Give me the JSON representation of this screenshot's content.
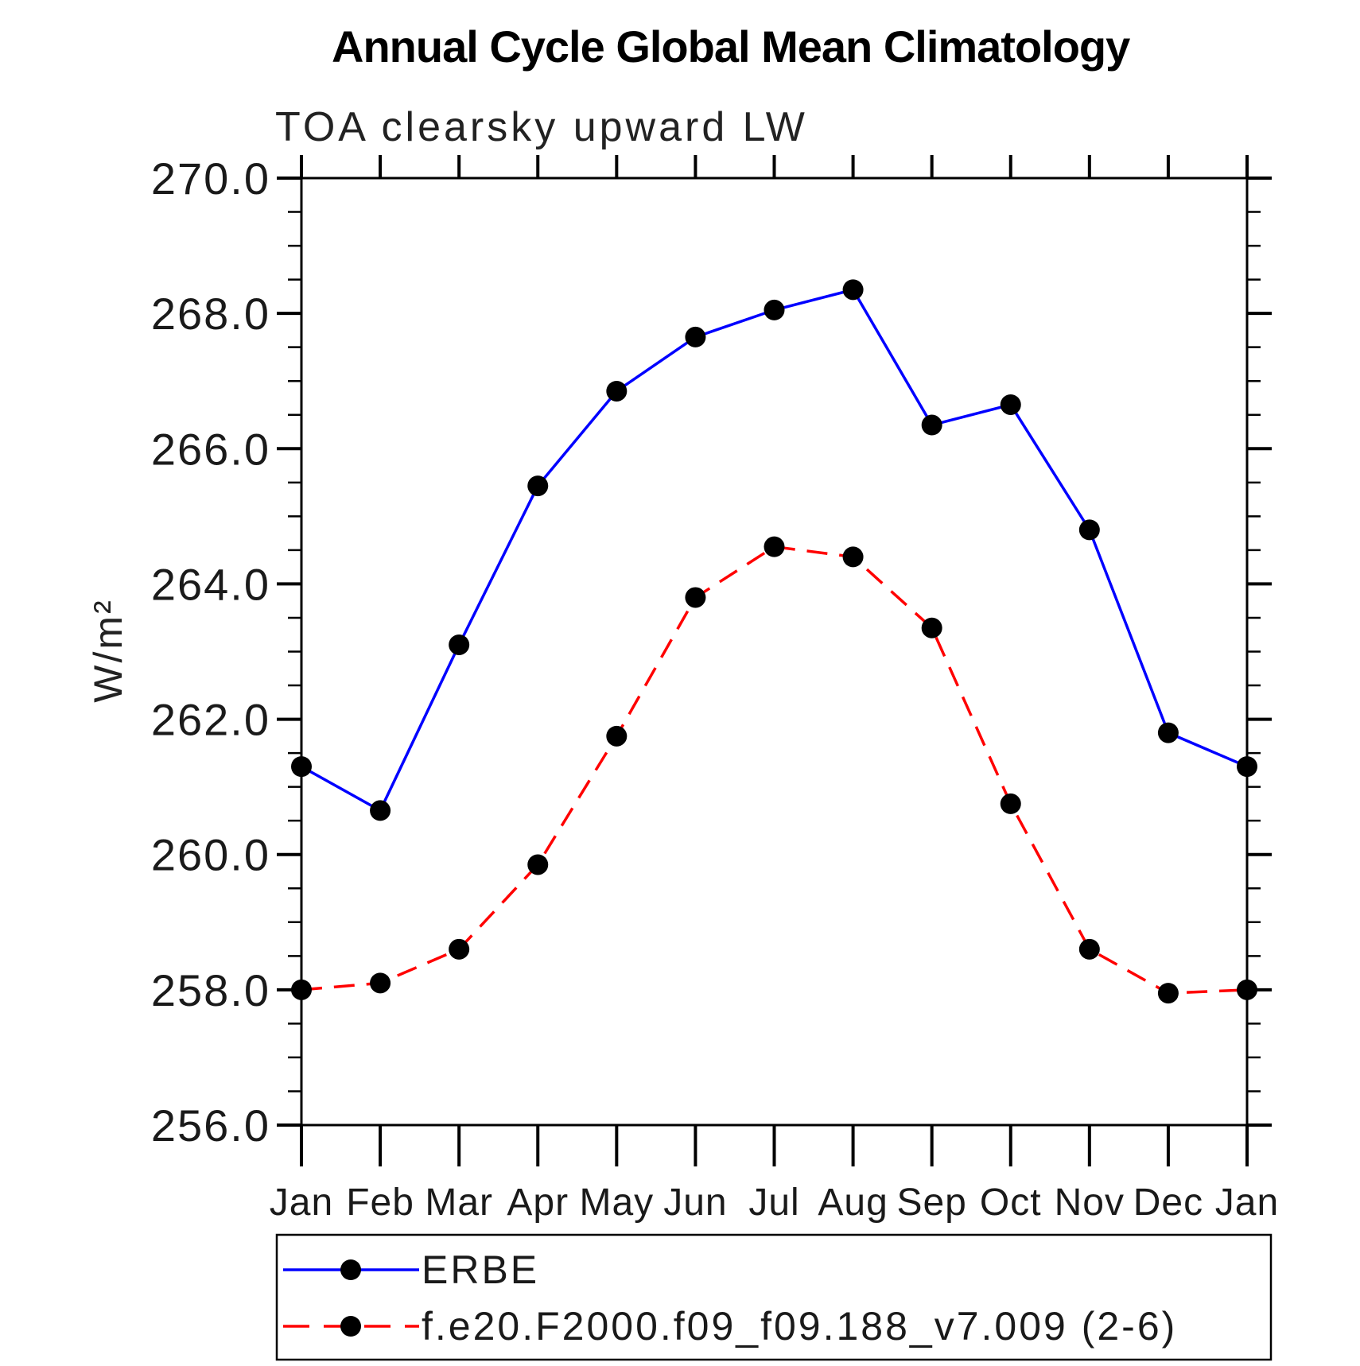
{
  "title": "Annual Cycle Global Mean Climatology",
  "subtitle": "TOA clearsky upward LW",
  "y_axis_label": "W/m²",
  "chart_data": {
    "type": "line",
    "title": "Annual Cycle Global Mean Climatology",
    "subtitle": "TOA clearsky upward LW",
    "ylabel": "W/m²",
    "categories": [
      "Jan",
      "Feb",
      "Mar",
      "Apr",
      "May",
      "Jun",
      "Jul",
      "Aug",
      "Sep",
      "Oct",
      "Nov",
      "Dec",
      "Jan"
    ],
    "series": [
      {
        "name": "ERBE",
        "color": "#0000ff",
        "line_style": "solid",
        "marker": "filled-circle",
        "marker_color": "#000000",
        "values": [
          261.3,
          260.65,
          263.1,
          265.45,
          266.85,
          267.65,
          268.05,
          268.35,
          266.35,
          266.65,
          264.8,
          261.8,
          261.3
        ]
      },
      {
        "name": "f.e20.F2000.f09_f09.188_v7.009 (2-6)",
        "color": "#ff0000",
        "line_style": "dashed",
        "marker": "filled-circle",
        "marker_color": "#000000",
        "values": [
          258.0,
          258.1,
          258.6,
          259.85,
          261.75,
          263.8,
          264.55,
          264.4,
          263.35,
          260.75,
          258.6,
          257.95,
          258.0
        ]
      }
    ],
    "ylim": [
      256.0,
      270.0
    ],
    "ytick_major_step": 2.0,
    "ytick_minor_step": 0.5,
    "ytick_labels": [
      "256.0",
      "258.0",
      "260.0",
      "262.0",
      "264.0",
      "266.0",
      "268.0",
      "270.0"
    ],
    "grid": false,
    "tick_direction": "outward",
    "legend": {
      "position": "bottom-box",
      "entries": [
        "ERBE",
        "f.e20.F2000.f09_f09.188_v7.009 (2-6)"
      ]
    }
  }
}
